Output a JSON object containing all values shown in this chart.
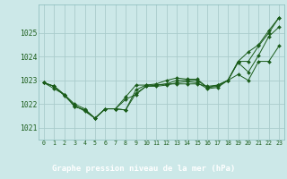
{
  "background_color": "#cce8e8",
  "plot_bg_color": "#cce8e8",
  "grid_color": "#aacccc",
  "line_color": "#1a5c1a",
  "marker_color": "#1a5c1a",
  "title": "Graphe pression niveau de la mer (hPa)",
  "title_bg": "#2d6b2d",
  "title_fg": "#ffffff",
  "label_fontsize": 6.0,
  "title_fontsize": 6.5,
  "ylim": [
    1020.5,
    1026.2
  ],
  "yticks": [
    1021,
    1022,
    1023,
    1024,
    1025
  ],
  "xticks": [
    0,
    1,
    2,
    3,
    4,
    5,
    6,
    7,
    8,
    9,
    10,
    11,
    12,
    13,
    14,
    15,
    16,
    17,
    18,
    19,
    20,
    21,
    22,
    23
  ],
  "series": [
    [
      1022.9,
      1022.75,
      1022.4,
      1021.9,
      1021.75,
      1021.4,
      1021.8,
      1021.8,
      1021.75,
      1022.45,
      1022.75,
      1022.8,
      1022.85,
      1022.85,
      1022.85,
      1022.85,
      1022.75,
      1022.8,
      1023.0,
      1023.8,
      1023.8,
      1024.45,
      1025.0,
      1025.65
    ],
    [
      1022.9,
      1022.75,
      1022.4,
      1021.9,
      1021.75,
      1021.4,
      1021.8,
      1021.8,
      1022.3,
      1022.8,
      1022.8,
      1022.8,
      1022.85,
      1023.0,
      1023.0,
      1023.0,
      1022.7,
      1022.75,
      1023.0,
      1023.75,
      1023.35,
      1024.05,
      1024.85,
      1025.25
    ],
    [
      1022.9,
      1022.75,
      1022.35,
      1021.95,
      1021.7,
      1021.4,
      1021.8,
      1021.8,
      1021.75,
      1022.6,
      1022.8,
      1022.85,
      1023.0,
      1023.1,
      1023.05,
      1023.05,
      1022.7,
      1022.8,
      1023.0,
      1023.8,
      1024.2,
      1024.5,
      1025.1,
      1025.65
    ],
    [
      1022.9,
      1022.65,
      1022.4,
      1022.0,
      1021.8,
      1021.4,
      1021.8,
      1021.8,
      1022.2,
      1022.4,
      1022.75,
      1022.75,
      1022.8,
      1022.9,
      1022.95,
      1022.9,
      1022.65,
      1022.7,
      1023.0,
      1023.25,
      1023.0,
      1023.8,
      1023.8,
      1024.45
    ]
  ]
}
